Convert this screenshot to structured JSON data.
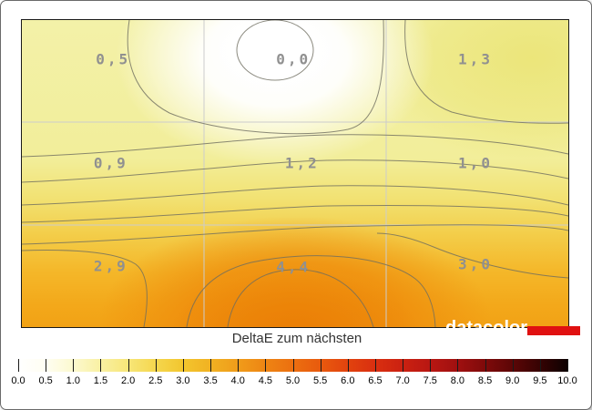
{
  "chart_data": {
    "type": "heatmap",
    "variant": "contour-map",
    "title": "DeltaE zum nächsten",
    "grid": {
      "rows": 3,
      "cols": 3,
      "gridlines": true
    },
    "values": [
      [
        0.5,
        0.0,
        1.3
      ],
      [
        0.9,
        1.2,
        1.0
      ],
      [
        2.9,
        4.4,
        3.0
      ]
    ],
    "cells": [
      {
        "label": "0,5",
        "value": 0.5,
        "x_pct": 16.7,
        "y_pct": 12.8
      },
      {
        "label": "0,0",
        "value": 0.0,
        "x_pct": 49.7,
        "y_pct": 12.8
      },
      {
        "label": "1,3",
        "value": 1.3,
        "x_pct": 83.0,
        "y_pct": 12.8
      },
      {
        "label": "0,9",
        "value": 0.9,
        "x_pct": 16.3,
        "y_pct": 46.6
      },
      {
        "label": "1,2",
        "value": 1.2,
        "x_pct": 51.3,
        "y_pct": 46.6
      },
      {
        "label": "1,0",
        "value": 1.0,
        "x_pct": 83.0,
        "y_pct": 46.6
      },
      {
        "label": "2,9",
        "value": 2.9,
        "x_pct": 16.3,
        "y_pct": 80.2
      },
      {
        "label": "4,4",
        "value": 4.4,
        "x_pct": 49.7,
        "y_pct": 80.4
      },
      {
        "label": "3,0",
        "value": 3.0,
        "x_pct": 83.0,
        "y_pct": 79.5
      }
    ],
    "colorbar": {
      "min": 0.0,
      "max": 10.0,
      "step": 0.5,
      "position": "bottom",
      "tick_labels": [
        "0.0",
        "0.5",
        "1.0",
        "1.5",
        "2.0",
        "2.5",
        "3.0",
        "3.5",
        "4.0",
        "4.5",
        "5.0",
        "5.5",
        "6.0",
        "6.5",
        "7.0",
        "7.5",
        "8.0",
        "8.5",
        "9.0",
        "9.5",
        "10.0"
      ],
      "gradient_stops": [
        "#ffffff",
        "#fffef2",
        "#fcf9cf",
        "#f9f0a2",
        "#f7e678",
        "#f5d74e",
        "#f2c62e",
        "#f1b122",
        "#f09c1a",
        "#ee8513",
        "#ec6f10",
        "#e85a0e",
        "#e2430e",
        "#d92f10",
        "#cb2111",
        "#b81712",
        "#a01010",
        "#7f0a0a",
        "#5c0606",
        "#360303",
        "#0d0101"
      ]
    },
    "colors": {
      "value_label": "#909090",
      "contour_line": "#6e6d5f",
      "grid_line": "#cccccc",
      "plot_border": "#1a1a1a"
    }
  },
  "branding": {
    "logo_text": "datacolor",
    "logo_text_color": "#ffffff",
    "logo_bar_color": "#e01111"
  }
}
